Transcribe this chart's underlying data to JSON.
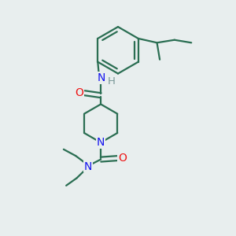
{
  "bg": "#e8eeee",
  "bond_color": "#2a6e52",
  "n_color": "#1414ee",
  "o_color": "#ee1414",
  "h_color": "#7a9898",
  "lw": 1.6,
  "figsize": [
    3.0,
    3.0
  ],
  "dpi": 100,
  "xlim": [
    0,
    10
  ],
  "ylim": [
    0,
    10
  ]
}
